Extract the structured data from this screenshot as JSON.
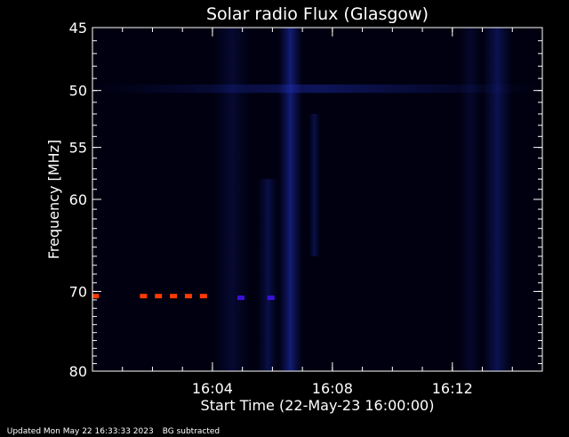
{
  "chart_data": {
    "type": "heatmap",
    "title": "Solar radio Flux (Glasgow)",
    "xlabel": "Start Time (22-May-23 16:00:00)",
    "ylabel": "Frequency [MHz]",
    "x_unit": "minutes after 16:00",
    "xlim": [
      0,
      15
    ],
    "ylim": [
      80,
      45
    ],
    "y_scale": "log",
    "x_ticks": [
      {
        "value": 4,
        "label": "16:04"
      },
      {
        "value": 8,
        "label": "16:08"
      },
      {
        "value": 12,
        "label": "16:12"
      }
    ],
    "y_ticks": [
      {
        "value": 45,
        "label": "45"
      },
      {
        "value": 50,
        "label": "50"
      },
      {
        "value": 55,
        "label": "55"
      },
      {
        "value": 60,
        "label": "60"
      },
      {
        "value": 70,
        "label": "70"
      },
      {
        "value": 80,
        "label": "80"
      }
    ],
    "emission_bands": [
      {
        "time_start": 6.2,
        "time_end": 7.0,
        "freq_start": 45,
        "freq_end": 80,
        "intensity": 0.55
      },
      {
        "time_start": 5.5,
        "time_end": 6.2,
        "freq_start": 58,
        "freq_end": 80,
        "intensity": 0.3
      },
      {
        "time_start": 13.0,
        "time_end": 14.0,
        "freq_start": 45,
        "freq_end": 80,
        "intensity": 0.35
      },
      {
        "time_start": 4.0,
        "time_end": 5.3,
        "freq_start": 45,
        "freq_end": 80,
        "intensity": 0.18
      },
      {
        "time_start": 12.2,
        "time_end": 13.0,
        "freq_start": 45,
        "freq_end": 80,
        "intensity": 0.15
      },
      {
        "time_start": 0.0,
        "time_end": 15.0,
        "freq_start": 49.5,
        "freq_end": 50.2,
        "intensity": 0.4
      },
      {
        "time_start": 7.2,
        "time_end": 7.6,
        "freq_start": 52,
        "freq_end": 66,
        "intensity": 0.3
      }
    ],
    "interference_marks": [
      {
        "time": 0.1,
        "freq": 70.5,
        "color": "#ff3b00"
      },
      {
        "time": 1.7,
        "freq": 70.5,
        "color": "#ff3b00"
      },
      {
        "time": 2.2,
        "freq": 70.5,
        "color": "#ff3b00"
      },
      {
        "time": 2.7,
        "freq": 70.5,
        "color": "#ff3b00"
      },
      {
        "time": 3.2,
        "freq": 70.5,
        "color": "#ff3b00"
      },
      {
        "time": 3.7,
        "freq": 70.5,
        "color": "#ff3b00"
      },
      {
        "time": 4.95,
        "freq": 70.7,
        "color": "#3a10d8"
      },
      {
        "time": 5.95,
        "freq": 70.7,
        "color": "#3a10d8"
      }
    ]
  },
  "footer": {
    "updated": "Updated Mon May 22 16:33:33 2023",
    "bg_note": "BG subtracted"
  }
}
